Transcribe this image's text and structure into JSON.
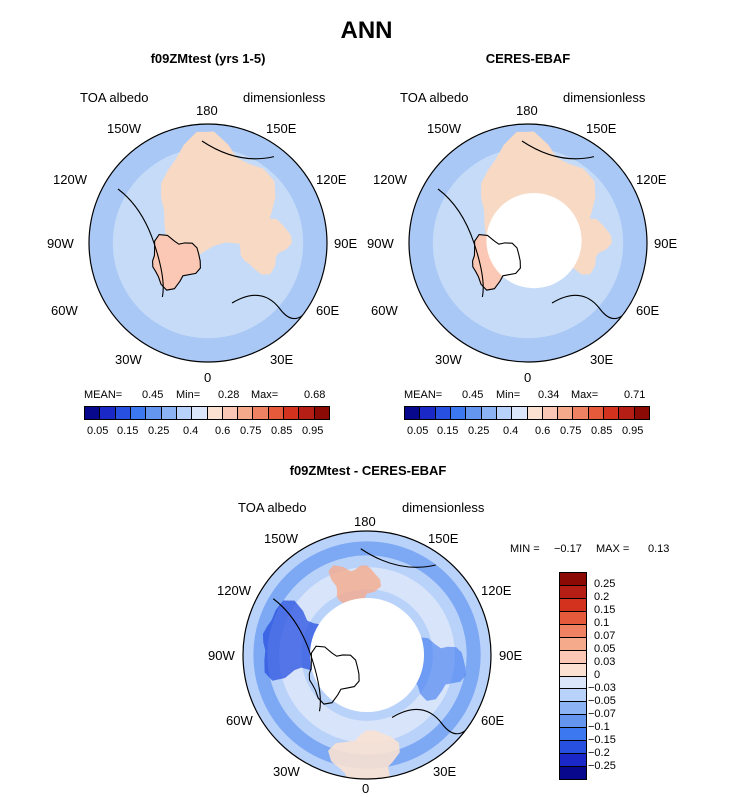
{
  "figure": {
    "title": "ANN",
    "variable": "TOA albedo",
    "units": "dimensionless",
    "lon_labels": [
      "180",
      "150E",
      "120E",
      "90E",
      "60E",
      "30E",
      "0",
      "30W",
      "60W",
      "90W",
      "120W",
      "150W"
    ]
  },
  "palette": {
    "abs": [
      "#08088c",
      "#1a28c8",
      "#2850e0",
      "#3c78f0",
      "#6496f0",
      "#8cb4f5",
      "#b9d2fa",
      "#dce6fa",
      "#fae1d2",
      "#fac8b4",
      "#f5aa8c",
      "#f08264",
      "#e65a3c",
      "#d2321e",
      "#b41e14",
      "#8c0a05"
    ],
    "diff": [
      "#8c0a05",
      "#b41e14",
      "#d2321e",
      "#e65a3c",
      "#f08264",
      "#f5aa8c",
      "#fac8b4",
      "#fae1d2",
      "#dce6fa",
      "#b9d2fa",
      "#8cb4f5",
      "#6496f0",
      "#3c78f0",
      "#2850e0",
      "#1a28c8",
      "#08088c"
    ],
    "land": "#f8d9c4",
    "ocean_low": "#a9c8f5",
    "ocean_mid": "#c6dbf8",
    "mask": "#ffffff"
  },
  "panels": [
    {
      "subtitle": "f09ZMtest (yrs 1-5)",
      "mean_label": "MEAN=",
      "mean": "0.45",
      "min_label": "Min=",
      "min": "0.28",
      "max_label": "Max=",
      "max": "0.68"
    },
    {
      "subtitle": "CERES-EBAF",
      "mean_label": "MEAN=",
      "mean": "0.45",
      "min_label": "Min=",
      "min": "0.34",
      "max_label": "Max=",
      "max": "0.71"
    },
    {
      "subtitle": "f09ZMtest - CERES-EBAF",
      "min_label": "MIN =",
      "min": "−0.17",
      "max_label": "MAX =",
      "max": "0.13"
    }
  ],
  "abs_ticks": [
    "0.05",
    "0.15",
    "0.25",
    "0.4",
    "0.6",
    "0.75",
    "0.85",
    "0.95"
  ],
  "diff_ticks": [
    "0.25",
    "0.2",
    "0.15",
    "0.1",
    "0.07",
    "0.05",
    "0.03",
    "0",
    "−0.03",
    "−0.05",
    "−0.07",
    "−0.1",
    "−0.15",
    "−0.2",
    "−0.25"
  ]
}
